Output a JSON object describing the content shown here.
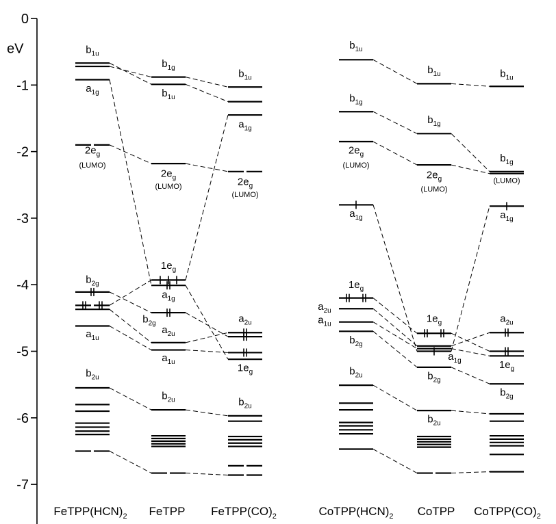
{
  "axis": {
    "unit": "eV",
    "ylim": [
      -7.4,
      0
    ],
    "ticks": [
      0,
      -1,
      -2,
      -3,
      -4,
      -5,
      -6,
      -7
    ],
    "tick_labels": [
      "0",
      "-1",
      "-2",
      "-3",
      "-4",
      "-5",
      "-6",
      "-7"
    ]
  },
  "columns": [
    {
      "id": "fehcn",
      "main": "FeTPP(HCN)",
      "sub": "2"
    },
    {
      "id": "fe",
      "main": "FeTPP",
      "sub": ""
    },
    {
      "id": "feco",
      "main": "FeTPP(CO)",
      "sub": "2"
    },
    {
      "id": "cohcn",
      "main": "CoTPP(HCN)",
      "sub": "2"
    },
    {
      "id": "co",
      "main": "CoTPP",
      "sub": ""
    },
    {
      "id": "coco",
      "main": "CoTPP(CO)",
      "sub": "2"
    }
  ],
  "levels": [
    {
      "id": "fehcn_b1u_a",
      "col": 0,
      "e": -0.67
    },
    {
      "id": "fehcn_b1u_b",
      "col": 0,
      "e": -0.72
    },
    {
      "id": "fehcn_a1g",
      "col": 0,
      "e": -0.92
    },
    {
      "id": "fehcn_2eg",
      "col": 0,
      "e": -1.9,
      "style": "split"
    },
    {
      "id": "fehcn_b2g",
      "col": 0,
      "e": -4.11,
      "electrons": 2
    },
    {
      "id": "fehcn_1eg",
      "col": 0,
      "e": -4.31,
      "electrons": 4,
      "style": "split"
    },
    {
      "id": "fehcn_x1",
      "col": 0,
      "e": -4.37
    },
    {
      "id": "fehcn_a1u",
      "col": 0,
      "e": -4.62
    },
    {
      "id": "fehcn_b2u",
      "col": 0,
      "e": -5.55
    },
    {
      "id": "fehcn_x2",
      "col": 0,
      "e": -5.8
    },
    {
      "id": "fehcn_x3",
      "col": 0,
      "e": -5.9
    },
    {
      "id": "fehcn_x4",
      "col": 0,
      "e": -6.08
    },
    {
      "id": "fehcn_x5",
      "col": 0,
      "e": -6.14
    },
    {
      "id": "fehcn_x6",
      "col": 0,
      "e": -6.2
    },
    {
      "id": "fehcn_x7",
      "col": 0,
      "e": -6.25
    },
    {
      "id": "fehcn_x8",
      "col": 0,
      "e": -6.5,
      "style": "split"
    },
    {
      "id": "fe_b1g",
      "col": 1,
      "e": -0.88
    },
    {
      "id": "fe_b1u",
      "col": 1,
      "e": -0.99
    },
    {
      "id": "fe_2eg",
      "col": 1,
      "e": -2.18
    },
    {
      "id": "fe_1eg",
      "col": 1,
      "e": -3.93,
      "electrons": 3
    },
    {
      "id": "fe_a1g",
      "col": 1,
      "e": -4.01,
      "electrons": 2
    },
    {
      "id": "fe_b2g",
      "col": 1,
      "e": -4.42,
      "electrons": 2
    },
    {
      "id": "fe_a2u",
      "col": 1,
      "e": -4.87
    },
    {
      "id": "fe_a1u",
      "col": 1,
      "e": -4.98
    },
    {
      "id": "fe_b2u",
      "col": 1,
      "e": -5.88
    },
    {
      "id": "fe_x1",
      "col": 1,
      "e": -6.27
    },
    {
      "id": "fe_x2",
      "col": 1,
      "e": -6.31
    },
    {
      "id": "fe_x3",
      "col": 1,
      "e": -6.35
    },
    {
      "id": "fe_x4",
      "col": 1,
      "e": -6.39
    },
    {
      "id": "fe_x5",
      "col": 1,
      "e": -6.43
    },
    {
      "id": "fe_x6",
      "col": 1,
      "e": -6.83,
      "style": "split"
    },
    {
      "id": "feco_b1u",
      "col": 2,
      "e": -1.03
    },
    {
      "id": "feco_b1g",
      "col": 2,
      "e": -1.25
    },
    {
      "id": "feco_a1g",
      "col": 2,
      "e": -1.45
    },
    {
      "id": "feco_2eg",
      "col": 2,
      "e": -2.3,
      "style": "split"
    },
    {
      "id": "feco_a2u",
      "col": 2,
      "e": -4.72,
      "electrons": 2
    },
    {
      "id": "feco_x1",
      "col": 2,
      "e": -4.78,
      "electrons": 2
    },
    {
      "id": "feco_b2g",
      "col": 2,
      "e": -5.02,
      "electrons": 2
    },
    {
      "id": "feco_1eg",
      "col": 2,
      "e": -5.12
    },
    {
      "id": "feco_b2u",
      "col": 2,
      "e": -5.97
    },
    {
      "id": "feco_x2",
      "col": 2,
      "e": -6.05
    },
    {
      "id": "feco_x3",
      "col": 2,
      "e": -6.28
    },
    {
      "id": "feco_x4",
      "col": 2,
      "e": -6.33
    },
    {
      "id": "feco_x5",
      "col": 2,
      "e": -6.38
    },
    {
      "id": "feco_x6",
      "col": 2,
      "e": -6.43
    },
    {
      "id": "feco_x7",
      "col": 2,
      "e": -6.72,
      "style": "split"
    },
    {
      "id": "feco_x8",
      "col": 2,
      "e": -6.86,
      "style": "split"
    },
    {
      "id": "cohcn_b1u",
      "col": 3,
      "e": -0.62
    },
    {
      "id": "cohcn_b1g",
      "col": 3,
      "e": -1.4
    },
    {
      "id": "cohcn_2eg",
      "col": 3,
      "e": -1.85
    },
    {
      "id": "cohcn_a1g",
      "col": 3,
      "e": -2.8,
      "electrons": 1
    },
    {
      "id": "cohcn_1eg",
      "col": 3,
      "e": -4.2,
      "electrons": 4
    },
    {
      "id": "cohcn_a2u",
      "col": 3,
      "e": -4.36
    },
    {
      "id": "cohcn_a1u",
      "col": 3,
      "e": -4.56
    },
    {
      "id": "cohcn_b2g",
      "col": 3,
      "e": -4.7
    },
    {
      "id": "cohcn_b2u",
      "col": 3,
      "e": -5.51
    },
    {
      "id": "cohcn_x1",
      "col": 3,
      "e": -5.78
    },
    {
      "id": "cohcn_x2",
      "col": 3,
      "e": -5.88
    },
    {
      "id": "cohcn_x3",
      "col": 3,
      "e": -6.07
    },
    {
      "id": "cohcn_x4",
      "col": 3,
      "e": -6.12
    },
    {
      "id": "cohcn_x5",
      "col": 3,
      "e": -6.18
    },
    {
      "id": "cohcn_x6",
      "col": 3,
      "e": -6.24
    },
    {
      "id": "cohcn_x7",
      "col": 3,
      "e": -6.47
    },
    {
      "id": "co_b1u",
      "col": 4,
      "e": -0.98
    },
    {
      "id": "co_b1g",
      "col": 4,
      "e": -1.73
    },
    {
      "id": "co_2eg",
      "col": 4,
      "e": -2.2
    },
    {
      "id": "co_1eg",
      "col": 4,
      "e": -4.73,
      "electrons": 4
    },
    {
      "id": "co_x1",
      "col": 4,
      "e": -4.92
    },
    {
      "id": "co_x2",
      "col": 4,
      "e": -4.96
    },
    {
      "id": "co_a1g",
      "col": 4,
      "e": -5.0,
      "electrons": 1
    },
    {
      "id": "co_b2g",
      "col": 4,
      "e": -5.24
    },
    {
      "id": "co_b2u",
      "col": 4,
      "e": -5.89
    },
    {
      "id": "co_x3",
      "col": 4,
      "e": -6.28
    },
    {
      "id": "co_x4",
      "col": 4,
      "e": -6.32
    },
    {
      "id": "co_x5",
      "col": 4,
      "e": -6.36
    },
    {
      "id": "co_x6",
      "col": 4,
      "e": -6.4
    },
    {
      "id": "co_x7",
      "col": 4,
      "e": -6.44
    },
    {
      "id": "co_x8",
      "col": 4,
      "e": -6.83,
      "style": "split"
    },
    {
      "id": "coco_b1u",
      "col": 5,
      "e": -1.02
    },
    {
      "id": "coco_b1g",
      "col": 5,
      "e": -2.3
    },
    {
      "id": "coco_2eg",
      "col": 5,
      "e": -2.33
    },
    {
      "id": "coco_a1g",
      "col": 5,
      "e": -2.82,
      "electrons": 1
    },
    {
      "id": "coco_a2u",
      "col": 5,
      "e": -4.72,
      "electrons": 2
    },
    {
      "id": "coco_x1",
      "col": 5,
      "e": -5.0,
      "electrons": 2
    },
    {
      "id": "coco_1eg",
      "col": 5,
      "e": -5.07
    },
    {
      "id": "coco_b2g",
      "col": 5,
      "e": -5.49
    },
    {
      "id": "coco_b2u",
      "col": 5,
      "e": -5.94
    },
    {
      "id": "coco_x2",
      "col": 5,
      "e": -6.05
    },
    {
      "id": "coco_x3",
      "col": 5,
      "e": -6.27
    },
    {
      "id": "coco_x4",
      "col": 5,
      "e": -6.32
    },
    {
      "id": "coco_x5",
      "col": 5,
      "e": -6.37
    },
    {
      "id": "coco_x6",
      "col": 5,
      "e": -6.42
    },
    {
      "id": "coco_x7",
      "col": 5,
      "e": -6.55
    },
    {
      "id": "coco_x8",
      "col": 5,
      "e": -6.81
    }
  ],
  "connections": [
    [
      "fehcn_b1u_a",
      "fe_b1u"
    ],
    [
      "fehcn_b1u_b",
      "fe_b1g"
    ],
    [
      "fehcn_a1g",
      "fe_a1g"
    ],
    [
      "fehcn_2eg",
      "fe_2eg"
    ],
    [
      "fehcn_b2g",
      "fe_b2g"
    ],
    [
      "fehcn_1eg",
      "fe_1eg"
    ],
    [
      "fehcn_x1",
      "fe_a2u"
    ],
    [
      "fehcn_a1u",
      "fe_a1u"
    ],
    [
      "fehcn_b2u",
      "fe_b2u"
    ],
    [
      "fehcn_x8",
      "fe_x6"
    ],
    [
      "fe_b1g",
      "feco_b1u"
    ],
    [
      "fe_b1u",
      "feco_b1g"
    ],
    [
      "fe_1eg",
      "feco_a1g"
    ],
    [
      "fe_2eg",
      "feco_2eg"
    ],
    [
      "fe_a1g",
      "feco_1eg"
    ],
    [
      "fe_b2g",
      "feco_x1"
    ],
    [
      "fe_a2u",
      "feco_a2u"
    ],
    [
      "fe_a1u",
      "feco_b2g"
    ],
    [
      "fe_b2u",
      "feco_b2u"
    ],
    [
      "fe_x6",
      "feco_x8"
    ],
    [
      "cohcn_b1u",
      "co_b1u"
    ],
    [
      "cohcn_b1g",
      "co_b1g"
    ],
    [
      "cohcn_2eg",
      "co_2eg"
    ],
    [
      "cohcn_a1g",
      "co_a1g"
    ],
    [
      "cohcn_1eg",
      "co_1eg"
    ],
    [
      "cohcn_a2u",
      "co_x1"
    ],
    [
      "cohcn_a1u",
      "co_x2"
    ],
    [
      "cohcn_b2g",
      "co_b2g"
    ],
    [
      "cohcn_b2u",
      "co_b2u"
    ],
    [
      "cohcn_x7",
      "co_x8"
    ],
    [
      "co_b1u",
      "coco_b1u"
    ],
    [
      "co_b1g",
      "coco_b1g"
    ],
    [
      "co_2eg",
      "coco_2eg"
    ],
    [
      "co_a1g",
      "coco_a1g"
    ],
    [
      "co_1eg",
      "coco_x1"
    ],
    [
      "co_x1",
      "coco_a2u"
    ],
    [
      "co_x2",
      "coco_1eg"
    ],
    [
      "co_b2g",
      "coco_b2g"
    ],
    [
      "co_b2u",
      "coco_b2u"
    ],
    [
      "co_x8",
      "coco_x8"
    ]
  ],
  "labels": [
    {
      "col": 0,
      "e": -0.52,
      "main": "b",
      "sub": "1u"
    },
    {
      "col": 0,
      "e": -1.1,
      "main": "a",
      "sub": "1g"
    },
    {
      "col": 0,
      "e": -2.03,
      "main": "2e",
      "sub": "g"
    },
    {
      "col": 0,
      "e": -2.24,
      "main": "(LUMO)",
      "sub": "",
      "small": true
    },
    {
      "col": 0,
      "e": -3.97,
      "main": "b",
      "sub": "2g"
    },
    {
      "col": 0,
      "e": -4.79,
      "main": "a",
      "sub": "1u"
    },
    {
      "col": 0,
      "e": -5.38,
      "main": "b",
      "sub": "2u"
    },
    {
      "col": 1,
      "e": -0.73,
      "main": "b",
      "sub": "1g"
    },
    {
      "col": 1,
      "e": -1.17,
      "main": "b",
      "sub": "1u"
    },
    {
      "col": 1,
      "e": -2.38,
      "main": "2e",
      "sub": "g"
    },
    {
      "col": 1,
      "e": -2.56,
      "main": "(LUMO)",
      "sub": "",
      "small": true
    },
    {
      "col": 1,
      "e": -3.76,
      "main": "1e",
      "sub": "g"
    },
    {
      "col": 1,
      "e": -4.2,
      "main": "a",
      "sub": "1g"
    },
    {
      "col": 1,
      "e": -4.57,
      "main": "b",
      "sub": "2g",
      "dx": -0.28
    },
    {
      "col": 1,
      "e": -4.73,
      "main": "a",
      "sub": "2u"
    },
    {
      "col": 1,
      "e": -5.15,
      "main": "a",
      "sub": "1u"
    },
    {
      "col": 1,
      "e": -5.72,
      "main": "b",
      "sub": "2u"
    },
    {
      "col": 2,
      "e": -0.88,
      "main": "b",
      "sub": "1u"
    },
    {
      "col": 2,
      "e": -1.64,
      "main": "a",
      "sub": "1g"
    },
    {
      "col": 2,
      "e": -2.5,
      "main": "2e",
      "sub": "g"
    },
    {
      "col": 2,
      "e": -2.68,
      "main": "(LUMO)",
      "sub": "",
      "small": true
    },
    {
      "col": 2,
      "e": -4.56,
      "main": "a",
      "sub": "2u"
    },
    {
      "col": 2,
      "e": -5.3,
      "main": "1e",
      "sub": "g"
    },
    {
      "col": 2,
      "e": -5.81,
      "main": "b",
      "sub": "2u"
    },
    {
      "col": 3,
      "e": -0.45,
      "main": "b",
      "sub": "1u"
    },
    {
      "col": 3,
      "e": -1.25,
      "main": "b",
      "sub": "1g"
    },
    {
      "col": 3,
      "e": -2.03,
      "main": "2e",
      "sub": "g"
    },
    {
      "col": 3,
      "e": -2.24,
      "main": "(LUMO)",
      "sub": "",
      "small": true
    },
    {
      "col": 3,
      "e": -2.98,
      "main": "a",
      "sub": "1g"
    },
    {
      "col": 3,
      "e": -4.05,
      "main": "1e",
      "sub": "g"
    },
    {
      "col": 3,
      "e": -4.38,
      "main": "a",
      "sub": "2u",
      "dx": -0.46
    },
    {
      "col": 3,
      "e": -4.58,
      "main": "a",
      "sub": "1u",
      "dx": -0.46
    },
    {
      "col": 3,
      "e": -4.88,
      "main": "b",
      "sub": "2g"
    },
    {
      "col": 3,
      "e": -5.35,
      "main": "b",
      "sub": "2u"
    },
    {
      "col": 4,
      "e": -0.82,
      "main": "b",
      "sub": "1u"
    },
    {
      "col": 4,
      "e": -1.57,
      "main": "b",
      "sub": "1g"
    },
    {
      "col": 4,
      "e": -2.4,
      "main": "2e",
      "sub": "g"
    },
    {
      "col": 4,
      "e": -2.6,
      "main": "(LUMO)",
      "sub": "",
      "small": true
    },
    {
      "col": 4,
      "e": -4.56,
      "main": "1e",
      "sub": "g"
    },
    {
      "col": 4,
      "e": -5.13,
      "main": "a",
      "sub": "1g",
      "dx": 0.3
    },
    {
      "col": 4,
      "e": -5.42,
      "main": "b",
      "sub": "2g"
    },
    {
      "col": 4,
      "e": -6.07,
      "main": "b",
      "sub": "2u"
    },
    {
      "col": 5,
      "e": -0.88,
      "main": "b",
      "sub": "1u"
    },
    {
      "col": 5,
      "e": -2.15,
      "main": "b",
      "sub": "1g"
    },
    {
      "col": 5,
      "e": -2.47,
      "main": "(LUMO)",
      "sub": "",
      "small": true
    },
    {
      "col": 5,
      "e": -3.0,
      "main": "a",
      "sub": "1g"
    },
    {
      "col": 5,
      "e": -4.56,
      "main": "a",
      "sub": "2u"
    },
    {
      "col": 5,
      "e": -5.25,
      "main": "1e",
      "sub": "g"
    },
    {
      "col": 5,
      "e": -5.67,
      "main": "b",
      "sub": "2g"
    }
  ]
}
